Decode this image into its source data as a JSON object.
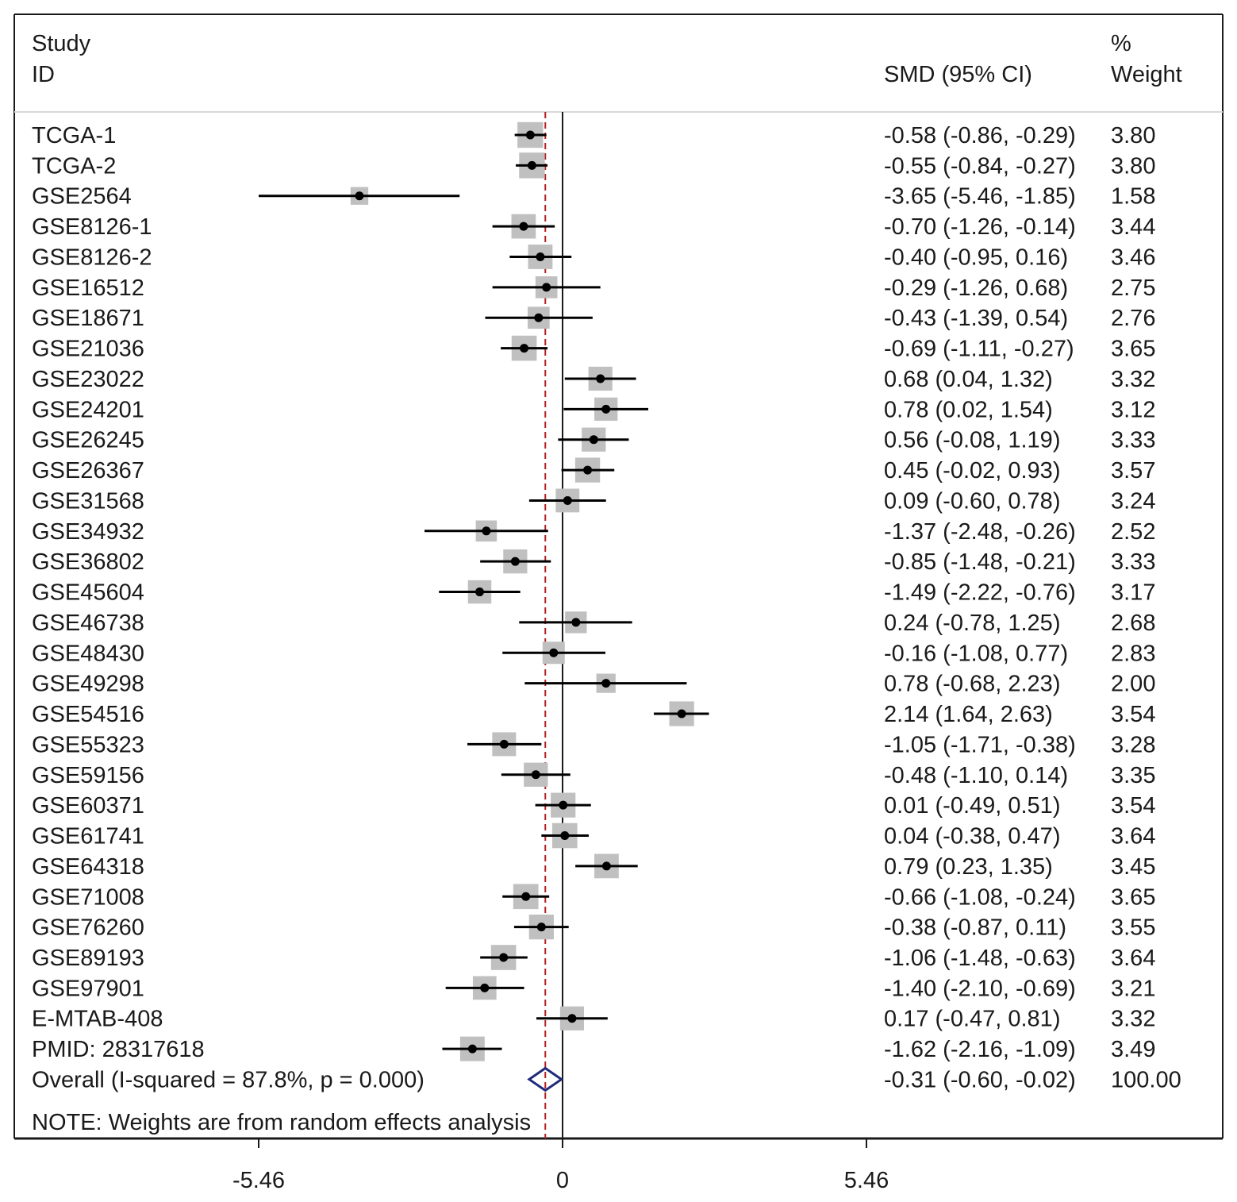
{
  "header": {
    "study_label": "Study",
    "id_label": "ID",
    "smd_label": "SMD (95% CI)",
    "percent_label": "%",
    "weight_label": "Weight"
  },
  "note": "NOTE: Weights are from random effects analysis",
  "colors": {
    "box": "#c0c0c0",
    "point": "#000000",
    "ci_line": "#000000",
    "overall_diamond": "#1f2a7a",
    "reference_line": "#b22222"
  },
  "chart_data": {
    "type": "forest",
    "xlabel": "",
    "x_ticks": [
      {
        "value": -5.46,
        "label": "-5.46"
      },
      {
        "value": 0,
        "label": "0"
      },
      {
        "value": 5.46,
        "label": "5.46"
      }
    ],
    "xlim": [
      -5.46,
      5.46
    ],
    "null_line": 0,
    "overall_line": -0.31,
    "studies": [
      {
        "id": "TCGA-1",
        "smd": -0.58,
        "lo": -0.86,
        "hi": -0.29,
        "weight": 3.8,
        "ci_text": "-0.58 (-0.86, -0.29)",
        "weight_text": "3.80"
      },
      {
        "id": "TCGA-2",
        "smd": -0.55,
        "lo": -0.84,
        "hi": -0.27,
        "weight": 3.8,
        "ci_text": "-0.55 (-0.84, -0.27)",
        "weight_text": "3.80"
      },
      {
        "id": "GSE2564",
        "smd": -3.65,
        "lo": -5.46,
        "hi": -1.85,
        "weight": 1.58,
        "ci_text": "-3.65 (-5.46, -1.85)",
        "weight_text": "1.58"
      },
      {
        "id": "GSE8126-1",
        "smd": -0.7,
        "lo": -1.26,
        "hi": -0.14,
        "weight": 3.44,
        "ci_text": "-0.70 (-1.26, -0.14)",
        "weight_text": "3.44"
      },
      {
        "id": "GSE8126-2",
        "smd": -0.4,
        "lo": -0.95,
        "hi": 0.16,
        "weight": 3.46,
        "ci_text": "-0.40 (-0.95, 0.16)",
        "weight_text": "3.46"
      },
      {
        "id": "GSE16512",
        "smd": -0.29,
        "lo": -1.26,
        "hi": 0.68,
        "weight": 2.75,
        "ci_text": "-0.29 (-1.26, 0.68)",
        "weight_text": "2.75"
      },
      {
        "id": "GSE18671",
        "smd": -0.43,
        "lo": -1.39,
        "hi": 0.54,
        "weight": 2.76,
        "ci_text": "-0.43 (-1.39, 0.54)",
        "weight_text": "2.76"
      },
      {
        "id": "GSE21036",
        "smd": -0.69,
        "lo": -1.11,
        "hi": -0.27,
        "weight": 3.65,
        "ci_text": "-0.69 (-1.11, -0.27)",
        "weight_text": "3.65"
      },
      {
        "id": "GSE23022",
        "smd": 0.68,
        "lo": 0.04,
        "hi": 1.32,
        "weight": 3.32,
        "ci_text": "0.68 (0.04, 1.32)",
        "weight_text": "3.32"
      },
      {
        "id": "GSE24201",
        "smd": 0.78,
        "lo": 0.02,
        "hi": 1.54,
        "weight": 3.12,
        "ci_text": "0.78 (0.02, 1.54)",
        "weight_text": "3.12"
      },
      {
        "id": "GSE26245",
        "smd": 0.56,
        "lo": -0.08,
        "hi": 1.19,
        "weight": 3.33,
        "ci_text": "0.56 (-0.08, 1.19)",
        "weight_text": "3.33"
      },
      {
        "id": "GSE26367",
        "smd": 0.45,
        "lo": -0.02,
        "hi": 0.93,
        "weight": 3.57,
        "ci_text": "0.45 (-0.02, 0.93)",
        "weight_text": "3.57"
      },
      {
        "id": "GSE31568",
        "smd": 0.09,
        "lo": -0.6,
        "hi": 0.78,
        "weight": 3.24,
        "ci_text": "0.09 (-0.60, 0.78)",
        "weight_text": "3.24"
      },
      {
        "id": "GSE34932",
        "smd": -1.37,
        "lo": -2.48,
        "hi": -0.26,
        "weight": 2.52,
        "ci_text": "-1.37 (-2.48, -0.26)",
        "weight_text": "2.52"
      },
      {
        "id": "GSE36802",
        "smd": -0.85,
        "lo": -1.48,
        "hi": -0.21,
        "weight": 3.33,
        "ci_text": "-0.85 (-1.48, -0.21)",
        "weight_text": "3.33"
      },
      {
        "id": "GSE45604",
        "smd": -1.49,
        "lo": -2.22,
        "hi": -0.76,
        "weight": 3.17,
        "ci_text": "-1.49 (-2.22, -0.76)",
        "weight_text": "3.17"
      },
      {
        "id": "GSE46738",
        "smd": 0.24,
        "lo": -0.78,
        "hi": 1.25,
        "weight": 2.68,
        "ci_text": "0.24 (-0.78, 1.25)",
        "weight_text": "2.68"
      },
      {
        "id": "GSE48430",
        "smd": -0.16,
        "lo": -1.08,
        "hi": 0.77,
        "weight": 2.83,
        "ci_text": "-0.16 (-1.08, 0.77)",
        "weight_text": "2.83"
      },
      {
        "id": "GSE49298",
        "smd": 0.78,
        "lo": -0.68,
        "hi": 2.23,
        "weight": 2.0,
        "ci_text": "0.78 (-0.68, 2.23)",
        "weight_text": "2.00"
      },
      {
        "id": "GSE54516",
        "smd": 2.14,
        "lo": 1.64,
        "hi": 2.63,
        "weight": 3.54,
        "ci_text": "2.14 (1.64, 2.63)",
        "weight_text": "3.54"
      },
      {
        "id": "GSE55323",
        "smd": -1.05,
        "lo": -1.71,
        "hi": -0.38,
        "weight": 3.28,
        "ci_text": "-1.05 (-1.71, -0.38)",
        "weight_text": "3.28"
      },
      {
        "id": "GSE59156",
        "smd": -0.48,
        "lo": -1.1,
        "hi": 0.14,
        "weight": 3.35,
        "ci_text": "-0.48 (-1.10, 0.14)",
        "weight_text": "3.35"
      },
      {
        "id": "GSE60371",
        "smd": 0.01,
        "lo": -0.49,
        "hi": 0.51,
        "weight": 3.54,
        "ci_text": "0.01 (-0.49, 0.51)",
        "weight_text": "3.54"
      },
      {
        "id": "GSE61741",
        "smd": 0.04,
        "lo": -0.38,
        "hi": 0.47,
        "weight": 3.64,
        "ci_text": "0.04 (-0.38, 0.47)",
        "weight_text": "3.64"
      },
      {
        "id": "GSE64318",
        "smd": 0.79,
        "lo": 0.23,
        "hi": 1.35,
        "weight": 3.45,
        "ci_text": "0.79 (0.23, 1.35)",
        "weight_text": "3.45"
      },
      {
        "id": "GSE71008",
        "smd": -0.66,
        "lo": -1.08,
        "hi": -0.24,
        "weight": 3.65,
        "ci_text": "-0.66 (-1.08, -0.24)",
        "weight_text": "3.65"
      },
      {
        "id": "GSE76260",
        "smd": -0.38,
        "lo": -0.87,
        "hi": 0.11,
        "weight": 3.55,
        "ci_text": "-0.38 (-0.87, 0.11)",
        "weight_text": "3.55"
      },
      {
        "id": "GSE89193",
        "smd": -1.06,
        "lo": -1.48,
        "hi": -0.63,
        "weight": 3.64,
        "ci_text": "-1.06 (-1.48, -0.63)",
        "weight_text": "3.64"
      },
      {
        "id": "GSE97901",
        "smd": -1.4,
        "lo": -2.1,
        "hi": -0.69,
        "weight": 3.21,
        "ci_text": "-1.40 (-2.10, -0.69)",
        "weight_text": "3.21"
      },
      {
        "id": "E-MTAB-408",
        "smd": 0.17,
        "lo": -0.47,
        "hi": 0.81,
        "weight": 3.32,
        "ci_text": "0.17 (-0.47, 0.81)",
        "weight_text": "3.32"
      },
      {
        "id": "PMID: 28317618",
        "smd": -1.62,
        "lo": -2.16,
        "hi": -1.09,
        "weight": 3.49,
        "ci_text": "-1.62 (-2.16, -1.09)",
        "weight_text": "3.49"
      }
    ],
    "overall": {
      "label": "Overall  (I-squared = 87.8%, p = 0.000)",
      "smd": -0.31,
      "lo": -0.6,
      "hi": -0.02,
      "ci_text": "-0.31 (-0.60, -0.02)",
      "weight_text": "100.00"
    }
  }
}
